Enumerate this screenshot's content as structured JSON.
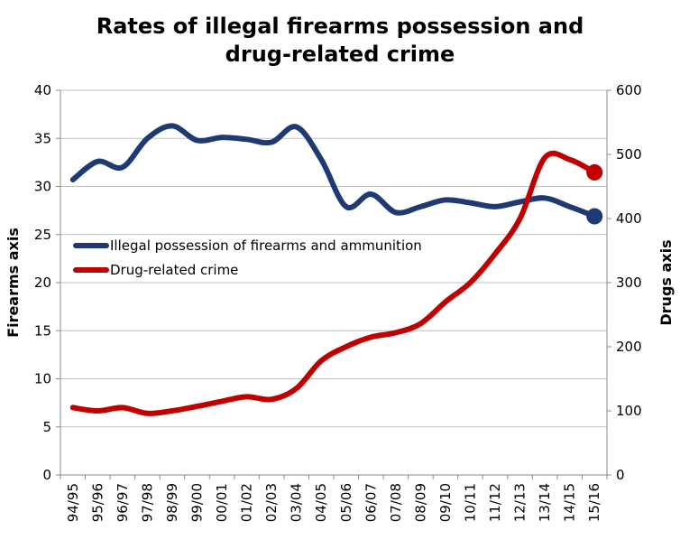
{
  "chart_data": {
    "type": "line",
    "title_line1": "Rates of illegal firearms possession and",
    "title_line2": "drug-related crime",
    "y_left_label": "Firearms axis",
    "y_right_label": "Drugs axis",
    "y_left_lim": [
      0,
      40
    ],
    "y_left_ticks": [
      "0",
      "5",
      "10",
      "15",
      "20",
      "25",
      "30",
      "35",
      "40"
    ],
    "y_right_lim": [
      0,
      600
    ],
    "y_right_ticks": [
      "0",
      "100",
      "200",
      "300",
      "400",
      "500",
      "600"
    ],
    "grid": true,
    "legend_placement": "center-left",
    "categories": [
      "94/95",
      "95/96",
      "96/97",
      "97/98",
      "98/99",
      "99/00",
      "00/01",
      "01/02",
      "02/03",
      "03/04",
      "04/05",
      "05/06",
      "06/07",
      "07/08",
      "08/09",
      "09/10",
      "10/11",
      "11/12",
      "12/13",
      "13/14",
      "14/15",
      "15/16"
    ],
    "series": [
      {
        "name": "Illegal possession of firearms and ammunition",
        "axis": "left",
        "color": "#1f3a73",
        "values": [
          30.7,
          32.6,
          32.0,
          35.0,
          36.3,
          34.8,
          35.1,
          34.9,
          34.6,
          36.2,
          32.8,
          27.9,
          29.2,
          27.3,
          27.9,
          28.6,
          28.3,
          27.9,
          28.4,
          28.8,
          27.9,
          26.9
        ]
      },
      {
        "name": "Drug-related crime",
        "axis": "right",
        "color": "#c00000",
        "values": [
          105,
          100,
          105,
          96,
          100,
          107,
          115,
          122,
          118,
          135,
          178,
          200,
          215,
          222,
          236,
          270,
          300,
          345,
          400,
          495,
          492,
          472
        ]
      }
    ]
  }
}
